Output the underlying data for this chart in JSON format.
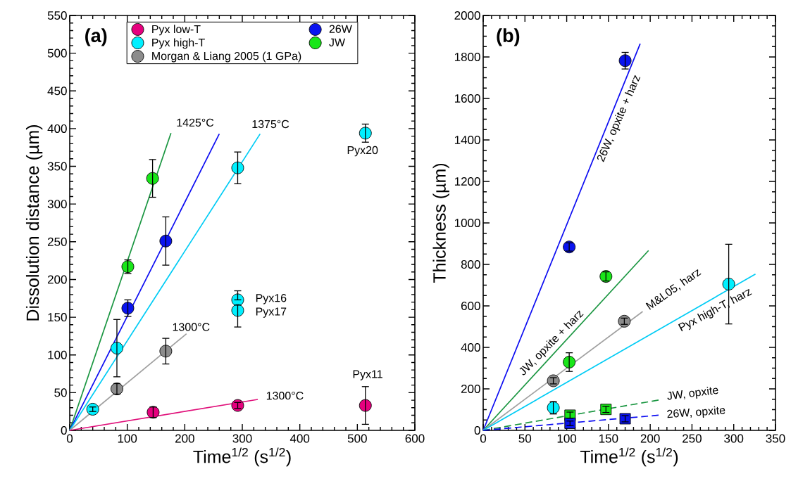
{
  "chart_data": [
    {
      "type": "scatter",
      "title": "(a)",
      "xlabel": "Time$^{1/2}$ (s$^{1/2}$)",
      "ylabel": "Dissolution distance (µm)",
      "xlim": [
        0,
        600
      ],
      "ylim": [
        0,
        550
      ],
      "xticks": [
        0,
        100,
        200,
        300,
        400,
        500,
        600
      ],
      "yticks": [
        0,
        50,
        100,
        150,
        200,
        250,
        300,
        350,
        400,
        450,
        500,
        550
      ],
      "marker": "circle",
      "legend": "top",
      "series": [
        {
          "type": "line",
          "marker": "none",
          "color": "#1a9641",
          "x": [
            0,
            176
          ],
          "values": [
            0,
            394
          ]
        },
        {
          "type": "line",
          "marker": "none",
          "color": "#0d0df2",
          "x": [
            0,
            260
          ],
          "values": [
            0,
            393
          ]
        },
        {
          "type": "line",
          "marker": "none",
          "color": "#00ccf5",
          "x": [
            0,
            331
          ],
          "values": [
            0,
            393
          ]
        },
        {
          "type": "line",
          "marker": "none",
          "color": "#a0a0a0",
          "x": [
            0,
            203
          ],
          "values": [
            0,
            128
          ]
        },
        {
          "type": "line",
          "marker": "none",
          "color": "#e0107a",
          "x": [
            0,
            327
          ],
          "values": [
            0,
            41
          ]
        },
        {
          "name": "Pyx low-T",
          "color": "#e6007e",
          "x": [
            145,
            292,
            514
          ],
          "values": [
            24,
            33,
            33
          ],
          "errors": [
            7,
            4,
            25
          ]
        },
        {
          "name": "Pyx high-T",
          "color": "#00f0ff",
          "x": [
            40,
            82,
            292,
            292,
            292,
            514
          ],
          "values": [
            28,
            109,
            348,
            173,
            159,
            394
          ],
          "errors": [
            3,
            38,
            21,
            [
              173,
              185
            ],
            [
              137,
              166
            ],
            12
          ]
        },
        {
          "name": "Morgan & Liang 2005 (1 GPa)",
          "color": "#8c8c8c",
          "x": [
            82,
            167
          ],
          "values": [
            55,
            105
          ],
          "errors": [
            7,
            17
          ]
        },
        {
          "name": "26W",
          "color": "#0a14f0",
          "x": [
            101,
            167
          ],
          "values": [
            162,
            251
          ],
          "errors": [
            11,
            32
          ]
        },
        {
          "name": "JW",
          "color": "#19e619",
          "x": [
            101,
            144
          ],
          "values": [
            217,
            334
          ],
          "errors": [
            9,
            25
          ]
        }
      ],
      "annotations": [
        "1425°C",
        "1375°C",
        "1300°C",
        "1300°C",
        "Pyx20",
        "Pyx16",
        "Pyx17",
        "Pyx11"
      ]
    },
    {
      "type": "scatter",
      "title": "(b)",
      "xlabel": "Time$^{1/2}$ (s$^{1/2}$)",
      "ylabel": "Thickness (µm)",
      "xlim": [
        0,
        350
      ],
      "ylim": [
        0,
        2000
      ],
      "xticks": [
        0,
        50,
        100,
        150,
        200,
        250,
        300,
        350
      ],
      "yticks": [
        0,
        200,
        400,
        600,
        800,
        1000,
        1200,
        1400,
        1600,
        1800,
        2000
      ],
      "marker": "circle",
      "series": [
        {
          "type": "line",
          "marker": "none",
          "color": "#0d0df2",
          "x": [
            0,
            188
          ],
          "values": [
            0,
            1864
          ]
        },
        {
          "type": "line",
          "marker": "none",
          "color": "#1a9641",
          "x": [
            0,
            198
          ],
          "values": [
            0,
            867
          ]
        },
        {
          "type": "line",
          "marker": "none",
          "color": "#a0a0a0",
          "x": [
            0,
            191
          ],
          "values": [
            0,
            573
          ]
        },
        {
          "type": "line",
          "marker": "none",
          "color": "#00ccf5",
          "x": [
            0,
            326
          ],
          "values": [
            0,
            753
          ]
        },
        {
          "type": "line",
          "marker": "none",
          "line_style": "dashed",
          "color": "#1a9641",
          "x": [
            0,
            210
          ],
          "values": [
            0,
            146
          ]
        },
        {
          "type": "line",
          "marker": "none",
          "line_style": "dashed",
          "color": "#0d0df2",
          "x": [
            0,
            210
          ],
          "values": [
            0,
            73
          ]
        },
        {
          "color": "#0a14f0",
          "x": [
            103,
            170
          ],
          "values": [
            884,
            1782
          ],
          "errors": [
            20,
            40
          ]
        },
        {
          "color": "#19e619",
          "x": [
            103,
            147
          ],
          "values": [
            329,
            742
          ],
          "errors": [
            45,
            22
          ]
        },
        {
          "color": "#8c8c8c",
          "x": [
            84,
            169
          ],
          "values": [
            239,
            526
          ],
          "errors": [
            15,
            15
          ]
        },
        {
          "color": "#00f0ff",
          "x": [
            84,
            294
          ],
          "values": [
            109,
            705
          ],
          "errors": [
            30,
            192
          ]
        },
        {
          "marker": "square",
          "color": "#19e619",
          "x": [
            104,
            147
          ],
          "values": [
            73,
            101
          ],
          "errors": [
            15,
            15
          ]
        },
        {
          "marker": "square",
          "color": "#0a14f0",
          "x": [
            104,
            170
          ],
          "values": [
            34,
            56
          ],
          "errors": [
            11,
            15
          ]
        }
      ],
      "annotations": [
        "26W, opxite + harz",
        "JW, opxite + harz",
        "M&L05, harz",
        "Pyx high-T, harz",
        "JW, opxite",
        "26W, opxite"
      ]
    }
  ]
}
